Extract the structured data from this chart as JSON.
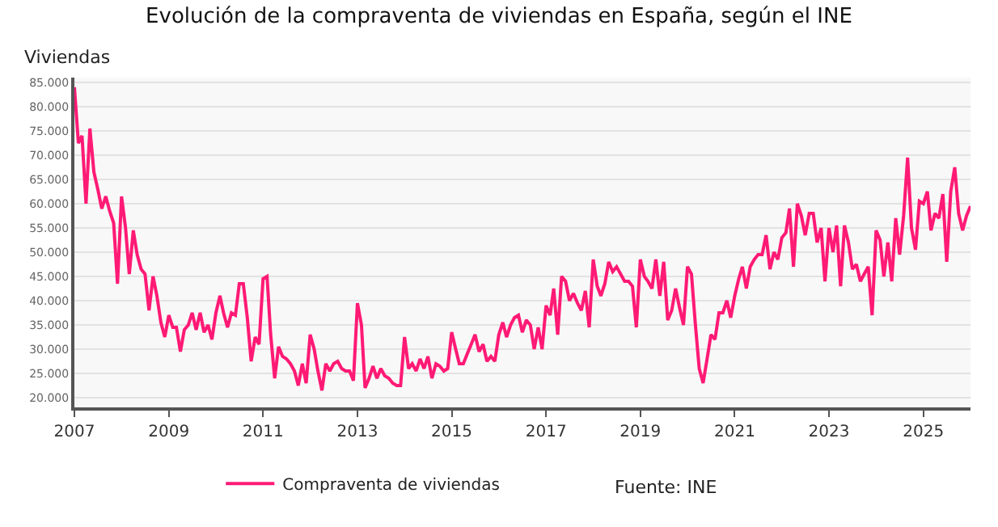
{
  "chart_data": {
    "type": "line",
    "title": "Evolución de la compraventa de viviendas en España, según el INE",
    "ylabel": "Viviendas",
    "annotations": [
      "Fuente: INE"
    ],
    "x": [
      "2007-01",
      "2007-02",
      "2007-03",
      "2007-04",
      "2007-05",
      "2007-06",
      "2007-07",
      "2007-08",
      "2007-09",
      "2007-10",
      "2007-11",
      "2007-12",
      "2008-01",
      "2008-02",
      "2008-03",
      "2008-04",
      "2008-05",
      "2008-06",
      "2008-07",
      "2008-08",
      "2008-09",
      "2008-10",
      "2008-11",
      "2008-12",
      "2009-01",
      "2009-02",
      "2009-03",
      "2009-04",
      "2009-05",
      "2009-06",
      "2009-07",
      "2009-08",
      "2009-09",
      "2009-10",
      "2009-11",
      "2009-12",
      "2010-01",
      "2010-02",
      "2010-03",
      "2010-04",
      "2010-05",
      "2010-06",
      "2010-07",
      "2010-08",
      "2010-09",
      "2010-10",
      "2010-11",
      "2010-12",
      "2011-01",
      "2011-02",
      "2011-03",
      "2011-04",
      "2011-05",
      "2011-06",
      "2011-07",
      "2011-08",
      "2011-09",
      "2011-10",
      "2011-11",
      "2011-12",
      "2012-01",
      "2012-02",
      "2012-03",
      "2012-04",
      "2012-05",
      "2012-06",
      "2012-07",
      "2012-08",
      "2012-09",
      "2012-10",
      "2012-11",
      "2012-12",
      "2013-01",
      "2013-02",
      "2013-03",
      "2013-04",
      "2013-05",
      "2013-06",
      "2013-07",
      "2013-08",
      "2013-09",
      "2013-10",
      "2013-11",
      "2013-12",
      "2014-01",
      "2014-02",
      "2014-03",
      "2014-04",
      "2014-05",
      "2014-06",
      "2014-07",
      "2014-08",
      "2014-09",
      "2014-10",
      "2014-11",
      "2014-12",
      "2015-01",
      "2015-02",
      "2015-03",
      "2015-04",
      "2015-05",
      "2015-06",
      "2015-07",
      "2015-08",
      "2015-09",
      "2015-10",
      "2015-11",
      "2015-12",
      "2016-01",
      "2016-02",
      "2016-03",
      "2016-04",
      "2016-05",
      "2016-06",
      "2016-07",
      "2016-08",
      "2016-09",
      "2016-10",
      "2016-11",
      "2016-12",
      "2017-01",
      "2017-02",
      "2017-03",
      "2017-04",
      "2017-05",
      "2017-06",
      "2017-07",
      "2017-08",
      "2017-09",
      "2017-10",
      "2017-11",
      "2017-12",
      "2018-01",
      "2018-02",
      "2018-03",
      "2018-04",
      "2018-05",
      "2018-06",
      "2018-07",
      "2018-08",
      "2018-09",
      "2018-10",
      "2018-11",
      "2018-12",
      "2019-01",
      "2019-02",
      "2019-03",
      "2019-04",
      "2019-05",
      "2019-06",
      "2019-07",
      "2019-08",
      "2019-09",
      "2019-10",
      "2019-11",
      "2019-12",
      "2020-01",
      "2020-02",
      "2020-03",
      "2020-04",
      "2020-05",
      "2020-06",
      "2020-07",
      "2020-08",
      "2020-09",
      "2020-10",
      "2020-11",
      "2020-12",
      "2021-01",
      "2021-02",
      "2021-03",
      "2021-04",
      "2021-05",
      "2021-06",
      "2021-07",
      "2021-08",
      "2021-09",
      "2021-10",
      "2021-11",
      "2021-12",
      "2022-01",
      "2022-02",
      "2022-03",
      "2022-04",
      "2022-05",
      "2022-06",
      "2022-07",
      "2022-08",
      "2022-09",
      "2022-10",
      "2022-11",
      "2022-12",
      "2023-01",
      "2023-02",
      "2023-03",
      "2023-04",
      "2023-05",
      "2023-06",
      "2023-07",
      "2023-08",
      "2023-09",
      "2023-10",
      "2023-11",
      "2023-12",
      "2024-01",
      "2024-02",
      "2024-03",
      "2024-04",
      "2024-05",
      "2024-06",
      "2024-07",
      "2024-08",
      "2024-09",
      "2024-10",
      "2024-11",
      "2024-12",
      "2025-01",
      "2025-02",
      "2025-03",
      "2025-04",
      "2025-05",
      "2025-06",
      "2025-07",
      "2025-08",
      "2025-09",
      "2025-10",
      "2025-11",
      "2025-12",
      "2026-01"
    ],
    "series": [
      {
        "name": "Compraventa de viviendas",
        "color": "#ff1a75",
        "values": [
          84000,
          72500,
          74000,
          60000,
          75500,
          66500,
          63000,
          59000,
          61500,
          58500,
          56000,
          43500,
          61500,
          55000,
          45500,
          54500,
          49500,
          46500,
          45500,
          38000,
          45000,
          41000,
          35500,
          32500,
          37000,
          34500,
          34500,
          29500,
          34000,
          35000,
          37500,
          34000,
          37500,
          33500,
          35000,
          32000,
          37500,
          41000,
          37500,
          34500,
          37500,
          37000,
          43500,
          43500,
          36500,
          27500,
          32500,
          31000,
          44500,
          45000,
          33000,
          24000,
          30500,
          28500,
          28000,
          27000,
          25500,
          22500,
          27000,
          23000,
          33000,
          30000,
          25500,
          21500,
          27000,
          25500,
          27000,
          27500,
          26000,
          25500,
          25500,
          23500,
          39500,
          35000,
          22000,
          24000,
          26500,
          24000,
          26000,
          24500,
          24000,
          23000,
          22500,
          22500,
          32500,
          26000,
          27000,
          25500,
          28000,
          26000,
          28500,
          24000,
          27000,
          26500,
          25500,
          26000,
          33500,
          30000,
          27000,
          27000,
          29000,
          31000,
          33000,
          29500,
          31000,
          27500,
          28500,
          27500,
          33000,
          35500,
          32500,
          35000,
          36500,
          37000,
          33500,
          36000,
          35000,
          30000,
          34500,
          30000,
          39000,
          37000,
          42500,
          33000,
          45000,
          44000,
          40000,
          41500,
          39500,
          38000,
          42000,
          34500,
          48500,
          43000,
          41000,
          43500,
          48000,
          46000,
          47000,
          45500,
          44000,
          44000,
          43000,
          34500,
          48500,
          45000,
          44000,
          42500,
          48500,
          41000,
          48000,
          36000,
          38000,
          42500,
          38500,
          35000,
          47000,
          45500,
          35500,
          26000,
          23000,
          28000,
          33000,
          32000,
          37500,
          37500,
          40000,
          36500,
          41000,
          44500,
          47000,
          42500,
          47000,
          48500,
          49500,
          49500,
          53500,
          46500,
          50000,
          48500,
          53000,
          54000,
          59000,
          47000,
          60000,
          57500,
          53500,
          58000,
          58000,
          52000,
          55000,
          44000,
          55000,
          50000,
          55500,
          43000,
          55500,
          52000,
          46500,
          47500,
          44000,
          45500,
          47000,
          37000,
          54500,
          52500,
          45000,
          52000,
          44000,
          57000,
          49500,
          57500,
          69500,
          55000,
          50500,
          60500,
          60000,
          62500,
          54500,
          58000,
          57000,
          62000,
          48000,
          62500,
          67500,
          58000,
          54500,
          57500,
          59500
        ]
      }
    ],
    "xlim": [
      "2007-01",
      "2026-01"
    ],
    "xticks": [
      {
        "value": "2007",
        "label": "2007"
      },
      {
        "value": "2009",
        "label": "2009"
      },
      {
        "value": "2011",
        "label": "2011"
      },
      {
        "value": "2013",
        "label": "2013"
      },
      {
        "value": "2015",
        "label": "2015"
      },
      {
        "value": "2017",
        "label": "2017"
      },
      {
        "value": "2019",
        "label": "2019"
      },
      {
        "value": "2021",
        "label": "2021"
      },
      {
        "value": "2023",
        "label": "2023"
      },
      {
        "value": "2025",
        "label": "2025"
      }
    ],
    "ylim": [
      18000,
      86000
    ],
    "yticks": [
      {
        "value": 20000,
        "label": "20.000"
      },
      {
        "value": 25000,
        "label": "25.000"
      },
      {
        "value": 30000,
        "label": "30.000"
      },
      {
        "value": 35000,
        "label": "35.000"
      },
      {
        "value": 40000,
        "label": "40.000"
      },
      {
        "value": 45000,
        "label": "45.000"
      },
      {
        "value": 50000,
        "label": "50.000"
      },
      {
        "value": 55000,
        "label": "55.000"
      },
      {
        "value": 60000,
        "label": "60.000"
      },
      {
        "value": 65000,
        "label": "65.000"
      },
      {
        "value": 70000,
        "label": "70.000"
      },
      {
        "value": 75000,
        "label": "75.000"
      },
      {
        "value": 80000,
        "label": "80.000"
      },
      {
        "value": 85000,
        "label": "85.000"
      }
    ],
    "grid": "y",
    "legend": "bottom left",
    "marker": "none",
    "line_style": "solid"
  }
}
